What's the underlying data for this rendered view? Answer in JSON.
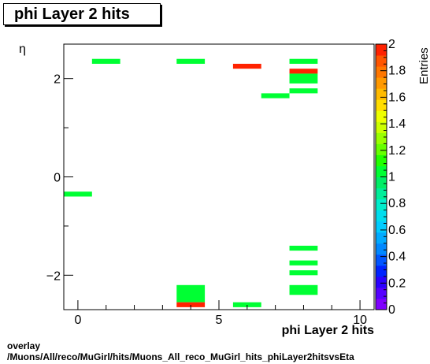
{
  "title": "phi Layer 2 hits",
  "footer": {
    "line1": "overlay",
    "line2": "/Muons/All/reco/MuGirl/hits/Muons_All_reco_MuGirl_hits_phiLayer2hitsvsEta"
  },
  "chart_data": {
    "type": "heatmap",
    "xlabel": "phi Layer 2 hits",
    "ylabel": "η",
    "zlabel": "Entries",
    "xlim": [
      -0.5,
      10.5
    ],
    "ylim": [
      -2.7,
      2.7
    ],
    "zlim": [
      0,
      2
    ],
    "x_ticks": [
      0,
      5,
      10
    ],
    "y_ticks": [
      -2,
      0,
      2
    ],
    "z_ticks": [
      0,
      0.2,
      0.4,
      0.6,
      0.8,
      1,
      1.2,
      1.4,
      1.6,
      1.8,
      2
    ],
    "palette_colors": [
      "#7f00ff",
      "#5500ff",
      "#2b00ff",
      "#0022ff",
      "#0055ff",
      "#0088ff",
      "#00aaff",
      "#00ccff",
      "#00ddee",
      "#00eecc",
      "#00ee99",
      "#00ee66",
      "#00ff33",
      "#22ff00",
      "#66ff00",
      "#99ff00",
      "#ccff00",
      "#eeff00",
      "#ffdd00",
      "#ffbb00",
      "#ff9900",
      "#ff7700",
      "#ff5500",
      "#ff2200"
    ],
    "cells": [
      {
        "x0": -0.5,
        "x1": 0.5,
        "y0": -0.4,
        "y1": -0.3,
        "z": 1
      },
      {
        "x0": 0.5,
        "x1": 1.5,
        "y0": 2.3,
        "y1": 2.4,
        "z": 1
      },
      {
        "x0": 3.5,
        "x1": 4.5,
        "y0": 2.3,
        "y1": 2.4,
        "z": 1
      },
      {
        "x0": 5.5,
        "x1": 6.5,
        "y0": 2.2,
        "y1": 2.3,
        "z": 2
      },
      {
        "x0": 6.5,
        "x1": 7.5,
        "y0": 1.6,
        "y1": 1.7,
        "z": 1
      },
      {
        "x0": 7.5,
        "x1": 8.5,
        "y0": 2.3,
        "y1": 2.4,
        "z": 1
      },
      {
        "x0": 7.5,
        "x1": 8.5,
        "y0": 2.1,
        "y1": 2.2,
        "z": 2
      },
      {
        "x0": 7.5,
        "x1": 8.5,
        "y0": 1.9,
        "y1": 2.1,
        "z": 1
      },
      {
        "x0": 7.5,
        "x1": 8.5,
        "y0": 1.7,
        "y1": 1.8,
        "z": 1
      },
      {
        "x0": 7.5,
        "x1": 8.5,
        "y0": -1.5,
        "y1": -1.4,
        "z": 1
      },
      {
        "x0": 7.5,
        "x1": 8.5,
        "y0": -1.8,
        "y1": -1.7,
        "z": 1
      },
      {
        "x0": 7.5,
        "x1": 8.5,
        "y0": -2.0,
        "y1": -1.9,
        "z": 1
      },
      {
        "x0": 7.5,
        "x1": 8.5,
        "y0": -2.4,
        "y1": -2.2,
        "z": 1
      },
      {
        "x0": 3.5,
        "x1": 4.5,
        "y0": -2.55,
        "y1": -2.2,
        "z": 1
      },
      {
        "x0": 3.5,
        "x1": 4.5,
        "y0": -2.65,
        "y1": -2.55,
        "z": 2
      },
      {
        "x0": 5.5,
        "x1": 6.5,
        "y0": -2.65,
        "y1": -2.55,
        "z": 1
      }
    ]
  }
}
